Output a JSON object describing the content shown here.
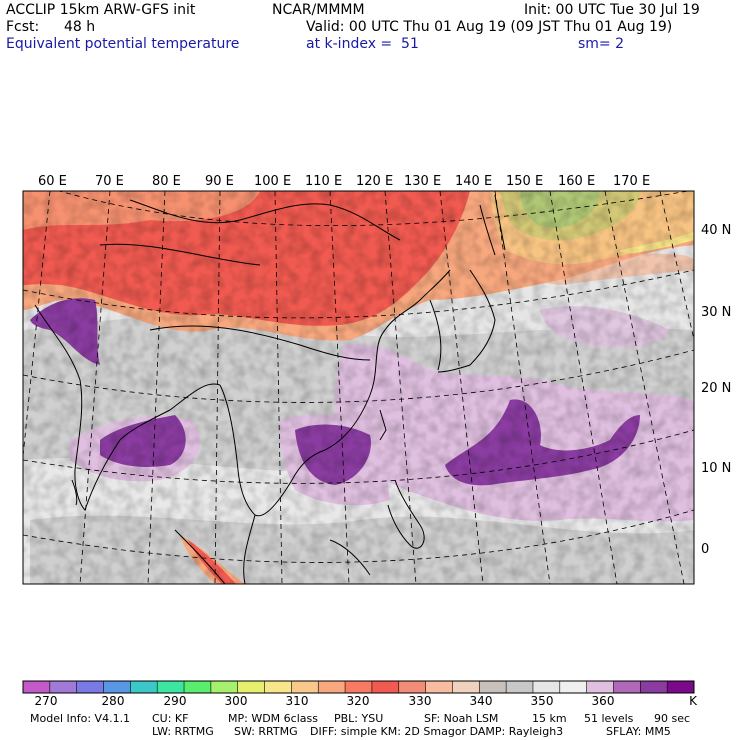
{
  "header": {
    "model": "ACCLIP 15km ARW-GFS init",
    "org": "NCAR/MMMM",
    "init": "Init: 00 UTC Tue 30 Jul 19",
    "fcst_label": "Fcst:",
    "fcst_value": "48 h",
    "valid": "Valid: 00 UTC Thu 01 Aug 19 (09 JST Thu 01 Aug 19)",
    "field": "Equivalent potential temperature",
    "level": "at k-index =  51",
    "smooth": "sm= 2"
  },
  "map": {
    "lon_labels": [
      "60 E",
      "70 E",
      "80 E",
      "90 E",
      "100 E",
      "110 E",
      "120 E",
      "130 E",
      "140 E",
      "150 E",
      "160 E",
      "170 E"
    ],
    "lat_labels": [
      "40 N",
      "30 N",
      "20 N",
      "10 N",
      "0"
    ]
  },
  "colorbar": {
    "unit": "K",
    "tick_labels": [
      "270",
      "280",
      "290",
      "300",
      "310",
      "320",
      "330",
      "340",
      "350",
      "360"
    ],
    "colors": [
      "#c25ac8",
      "#a07ad6",
      "#7a7ae6",
      "#5a96e6",
      "#3cc8c8",
      "#3ce6a0",
      "#5aee6e",
      "#a6f06e",
      "#e6f06e",
      "#f8e68a",
      "#f8c88c",
      "#f8a87e",
      "#f87a64",
      "#f05a50",
      "#f08c78",
      "#f8bca0",
      "#f0d2be",
      "#c8c0ba",
      "#c8c8c8",
      "#e6e6e6",
      "#f0f0f0",
      "#e0c0e0",
      "#b068b8",
      "#8a3ca0",
      "#7a0a8a"
    ]
  },
  "footer": {
    "line1": [
      "Model Info: V4.1.1",
      "CU: KF",
      "MP: WDM 6class",
      "PBL: YSU",
      "SF: Noah LSM",
      "15 km",
      "51 levels",
      "90 sec"
    ],
    "line2": [
      "LW: RRTMG",
      "SW: RRTMG",
      "DIFF: simple KM: 2D Smagor DAMP: Rayleigh3",
      "SFLAY: MM5"
    ]
  }
}
